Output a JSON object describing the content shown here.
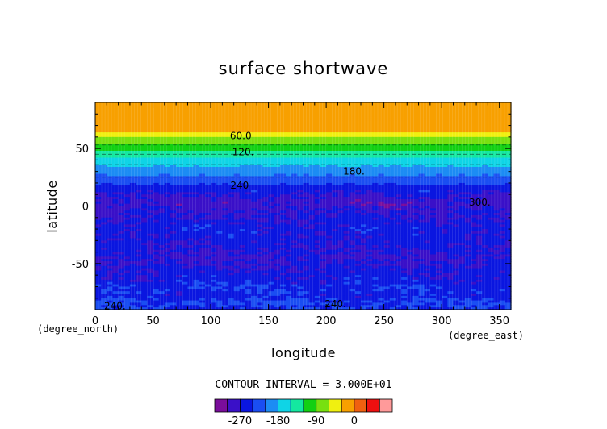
{
  "chart_data": {
    "type": "heatmap",
    "title": "surface shortwave",
    "xlabel": "longitude",
    "ylabel": "latitude",
    "x_unit": "(degree_east)",
    "y_unit": "(degree_north)",
    "xlim": [
      0,
      360
    ],
    "ylim": [
      -90,
      90
    ],
    "x_ticks": [
      "0",
      "50",
      "100",
      "150",
      "200",
      "250",
      "300",
      "350"
    ],
    "x_tick_values": [
      0,
      50,
      100,
      150,
      200,
      250,
      300,
      350
    ],
    "y_ticks": [
      "50",
      "0",
      "-50"
    ],
    "y_tick_values": [
      50,
      0,
      -50
    ],
    "contour_interval_text": "CONTOUR INTERVAL = 3.000E+01",
    "contour_labels": [
      {
        "text": "60.0",
        "lon": 126,
        "lat": 61
      },
      {
        "text": "120.",
        "lon": 128,
        "lat": 47
      },
      {
        "text": "180.",
        "lon": 224,
        "lat": 30
      },
      {
        "text": "240",
        "lon": 125,
        "lat": 18
      },
      {
        "text": "300.",
        "lon": 333,
        "lat": 3
      },
      {
        "text": "240.",
        "lon": 17,
        "lat": -87
      },
      {
        "text": "240.",
        "lon": 208,
        "lat": -85
      }
    ],
    "zonal_profile": [
      {
        "lat": 90,
        "value": -5
      },
      {
        "lat": 66,
        "value": -5
      },
      {
        "lat": 62,
        "value": -45
      },
      {
        "lat": 58,
        "value": -75
      },
      {
        "lat": 53,
        "value": -95
      },
      {
        "lat": 49,
        "value": -115
      },
      {
        "lat": 45,
        "value": -135
      },
      {
        "lat": 41,
        "value": -155
      },
      {
        "lat": 36,
        "value": -175
      },
      {
        "lat": 31,
        "value": -195
      },
      {
        "lat": 25,
        "value": -215
      },
      {
        "lat": 20,
        "value": -235
      },
      {
        "lat": 14,
        "value": -255
      },
      {
        "lat": 8,
        "value": -275
      },
      {
        "lat": 2,
        "value": -285
      },
      {
        "lat": -5,
        "value": -275
      },
      {
        "lat": -20,
        "value": -255
      },
      {
        "lat": -35,
        "value": -265
      },
      {
        "lat": -45,
        "value": -275
      },
      {
        "lat": -55,
        "value": -265
      },
      {
        "lat": -65,
        "value": -255
      },
      {
        "lat": -72,
        "value": -245
      },
      {
        "lat": -78,
        "value": -255
      },
      {
        "lat": -84,
        "value": -235
      },
      {
        "lat": -90,
        "value": -245
      }
    ],
    "levels": [
      -300,
      -270,
      -240,
      -210,
      -180,
      -150,
      -120,
      -90,
      -60,
      -30,
      0
    ],
    "colors": [
      "#7a0d9b",
      "#3a10c8",
      "#0a16e0",
      "#1a4ef2",
      "#1c8cf4",
      "#0fd4e6",
      "#14e8a0",
      "#12d012",
      "#78e010",
      "#f0f010",
      "#f8a000",
      "#f06010",
      "#ee1010",
      "#ff9a9a"
    ],
    "colorbar": {
      "tick_labels": [
        "-270",
        "-180",
        "-90",
        "0"
      ],
      "tick_values": [
        -270,
        -180,
        -90,
        0
      ]
    }
  }
}
